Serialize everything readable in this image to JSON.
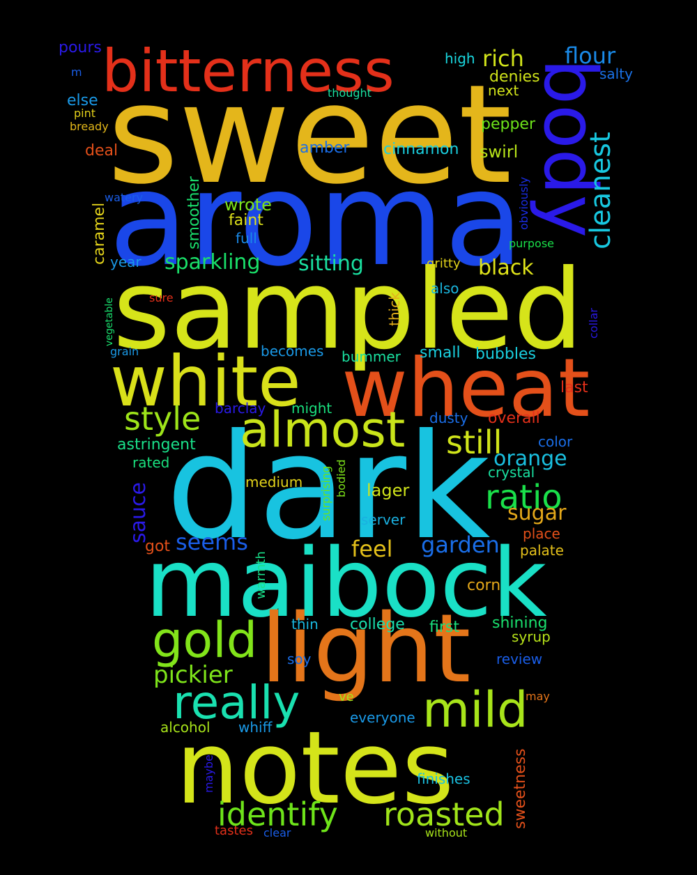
{
  "title": "Word cloud",
  "background_color": "#000000",
  "words": [
    {
      "id": "sweet",
      "text": "sweet",
      "color": "#e4b61b"
    },
    {
      "id": "aroma",
      "text": "aroma",
      "color": "#1a47e8"
    },
    {
      "id": "sampled",
      "text": "sampled",
      "color": "#d6e41a"
    },
    {
      "id": "dark",
      "text": "dark",
      "color": "#18c3e0"
    },
    {
      "id": "maibock",
      "text": "maibock",
      "color": "#1ae0c6"
    },
    {
      "id": "notes",
      "text": "notes",
      "color": "#d4e41a"
    },
    {
      "id": "light",
      "text": "light",
      "color": "#e4751a"
    },
    {
      "id": "wheat",
      "text": "wheat",
      "color": "#e4501a"
    },
    {
      "id": "white",
      "text": "white",
      "color": "#d9e01a"
    },
    {
      "id": "bitterness",
      "text": "bitterness",
      "color": "#e4301a"
    },
    {
      "id": "body",
      "text": "body",
      "color": "#2a1ae8"
    },
    {
      "id": "almost",
      "text": "almost",
      "color": "#c9e41a"
    },
    {
      "id": "gold",
      "text": "gold",
      "color": "#82e41a"
    },
    {
      "id": "mild",
      "text": "mild",
      "color": "#a8e41a"
    },
    {
      "id": "really",
      "text": "really",
      "color": "#1ae0b0"
    },
    {
      "id": "identify",
      "text": "identify",
      "color": "#6ee41a"
    },
    {
      "id": "roasted",
      "text": "roasted",
      "color": "#a0e41a"
    },
    {
      "id": "ratio",
      "text": "ratio",
      "color": "#1ae04a"
    },
    {
      "id": "still",
      "text": "still",
      "color": "#d0e41a"
    },
    {
      "id": "style",
      "text": "style",
      "color": "#9ee41a"
    },
    {
      "id": "cleanest",
      "text": "cleanest",
      "color": "#18c8e0"
    },
    {
      "id": "sitting",
      "text": "sitting",
      "color": "#1ae0a0"
    },
    {
      "id": "sparkling",
      "text": "sparkling",
      "color": "#1ae06a"
    },
    {
      "id": "pickier",
      "text": "pickier",
      "color": "#7ee41a"
    },
    {
      "id": "seems",
      "text": "seems",
      "color": "#1a5ee8"
    },
    {
      "id": "garden",
      "text": "garden",
      "color": "#1a6ee8"
    },
    {
      "id": "feel",
      "text": "feel",
      "color": "#e4c01a"
    },
    {
      "id": "orange",
      "text": "orange",
      "color": "#1ac0e0"
    },
    {
      "id": "sugar",
      "text": "sugar",
      "color": "#e4a81a"
    },
    {
      "id": "black",
      "text": "black",
      "color": "#e0e41a"
    },
    {
      "id": "rich",
      "text": "rich",
      "color": "#d2e41a"
    },
    {
      "id": "flour",
      "text": "flour",
      "color": "#1a8ae8"
    },
    {
      "id": "sweetness",
      "text": "sweetness",
      "color": "#e4501a"
    },
    {
      "id": "sauce",
      "text": "sauce",
      "color": "#2a1ae8"
    },
    {
      "id": "pours",
      "text": "pours",
      "color": "#2a1ae8"
    },
    {
      "id": "high",
      "text": "high",
      "color": "#1ad8e0"
    },
    {
      "id": "denies",
      "text": "denies",
      "color": "#d0e41a"
    },
    {
      "id": "next",
      "text": "next",
      "color": "#d2e41a"
    },
    {
      "id": "salty",
      "text": "salty",
      "color": "#1a72e8"
    },
    {
      "id": "m",
      "text": "m",
      "color": "#1a5ee8"
    },
    {
      "id": "thought",
      "text": "thought",
      "color": "#1ae0a0"
    },
    {
      "id": "else",
      "text": "else",
      "color": "#1a9ae8"
    },
    {
      "id": "pint",
      "text": "pint",
      "color": "#e4d01a"
    },
    {
      "id": "bready",
      "text": "bready",
      "color": "#e4b81a"
    },
    {
      "id": "pepper",
      "text": "pepper",
      "color": "#6ee41a"
    },
    {
      "id": "deal",
      "text": "deal",
      "color": "#e4501a"
    },
    {
      "id": "amber",
      "text": "amber",
      "color": "#1a6ee8"
    },
    {
      "id": "cinnamon",
      "text": "cinnamon",
      "color": "#1ad0e0"
    },
    {
      "id": "swirl",
      "text": "swirl",
      "color": "#b8e41a"
    },
    {
      "id": "watery",
      "text": "watery",
      "color": "#1a5ee8"
    },
    {
      "id": "caramel",
      "text": "caramel",
      "color": "#e4d41a"
    },
    {
      "id": "smoother",
      "text": "smoother",
      "color": "#1ae06e"
    },
    {
      "id": "wrote",
      "text": "wrote",
      "color": "#7ee41a"
    },
    {
      "id": "faint",
      "text": "faint",
      "color": "#e0e41a"
    },
    {
      "id": "full",
      "text": "full",
      "color": "#1a8ae8"
    },
    {
      "id": "obviously",
      "text": "obviously",
      "color": "#1a2ee8"
    },
    {
      "id": "purpose",
      "text": "purpose",
      "color": "#1ae04a"
    },
    {
      "id": "year",
      "text": "year",
      "color": "#1a9ae8"
    },
    {
      "id": "gritty",
      "text": "gritty",
      "color": "#e4d41a"
    },
    {
      "id": "also",
      "text": "also",
      "color": "#1ab8e0"
    },
    {
      "id": "sure",
      "text": "sure",
      "color": "#e4301a"
    },
    {
      "id": "vegetable",
      "text": "vegetable",
      "color": "#1ae06e"
    },
    {
      "id": "thick",
      "text": "thick",
      "color": "#e4b01a"
    },
    {
      "id": "collar",
      "text": "collar",
      "color": "#2a1ae8"
    },
    {
      "id": "grain",
      "text": "grain",
      "color": "#1a9ae8"
    },
    {
      "id": "becomes",
      "text": "becomes",
      "color": "#1a9ae8"
    },
    {
      "id": "bummer",
      "text": "bummer",
      "color": "#1ae0a0"
    },
    {
      "id": "small",
      "text": "small",
      "color": "#1ad0e0"
    },
    {
      "id": "bubbles",
      "text": "bubbles",
      "color": "#1ad0e0"
    },
    {
      "id": "last",
      "text": "last",
      "color": "#e4301a"
    },
    {
      "id": "barclay",
      "text": "barclay",
      "color": "#2a1ae8"
    },
    {
      "id": "might",
      "text": "might",
      "color": "#1ae07e"
    },
    {
      "id": "dusty",
      "text": "dusty",
      "color": "#1a6ee8"
    },
    {
      "id": "overall",
      "text": "overall",
      "color": "#e4301a"
    },
    {
      "id": "astringent",
      "text": "astringent",
      "color": "#1ae08a"
    },
    {
      "id": "color",
      "text": "color",
      "color": "#1a6ee8"
    },
    {
      "id": "rated",
      "text": "rated",
      "color": "#1ae07e"
    },
    {
      "id": "surprising",
      "text": "surprising",
      "color": "#6ee41a"
    },
    {
      "id": "bodied",
      "text": "bodied",
      "color": "#7ee41a"
    },
    {
      "id": "crystal",
      "text": "crystal",
      "color": "#1ae0a0"
    },
    {
      "id": "medium",
      "text": "medium",
      "color": "#e4d41a"
    },
    {
      "id": "lager",
      "text": "lager",
      "color": "#d0e41a"
    },
    {
      "id": "server",
      "text": "server",
      "color": "#1ab0e0"
    },
    {
      "id": "place",
      "text": "place",
      "color": "#e4501a"
    },
    {
      "id": "got",
      "text": "got",
      "color": "#e4501a"
    },
    {
      "id": "palate",
      "text": "palate",
      "color": "#e4c01a"
    },
    {
      "id": "warmth",
      "text": "warmth",
      "color": "#1ae08a"
    },
    {
      "id": "corn",
      "text": "corn",
      "color": "#e4a81a"
    },
    {
      "id": "thin",
      "text": "thin",
      "color": "#1ab8e0"
    },
    {
      "id": "college",
      "text": "college",
      "color": "#1ae0b0"
    },
    {
      "id": "first",
      "text": "first",
      "color": "#1ae07e"
    },
    {
      "id": "shining",
      "text": "shining",
      "color": "#1ae06e"
    },
    {
      "id": "syrup",
      "text": "syrup",
      "color": "#b8e41a"
    },
    {
      "id": "soy",
      "text": "soy",
      "color": "#1a6ee8"
    },
    {
      "id": "review",
      "text": "review",
      "color": "#1a5ee8"
    },
    {
      "id": "may",
      "text": "may",
      "color": "#e4751a"
    },
    {
      "id": "ve",
      "text": "ve",
      "color": "#a8e41a"
    },
    {
      "id": "everyone",
      "text": "everyone",
      "color": "#1a9ae8"
    },
    {
      "id": "alcohol",
      "text": "alcohol",
      "color": "#a8e41a"
    },
    {
      "id": "whiff",
      "text": "whiff",
      "color": "#1a9ae8"
    },
    {
      "id": "maybe",
      "text": "maybe",
      "color": "#2a1ae8"
    },
    {
      "id": "finishes",
      "text": "finishes",
      "color": "#1ac0e0"
    },
    {
      "id": "tastes",
      "text": "tastes",
      "color": "#e4301a"
    },
    {
      "id": "clear",
      "text": "clear",
      "color": "#1a5ee8"
    },
    {
      "id": "without",
      "text": "without",
      "color": "#a8e41a"
    }
  ]
}
